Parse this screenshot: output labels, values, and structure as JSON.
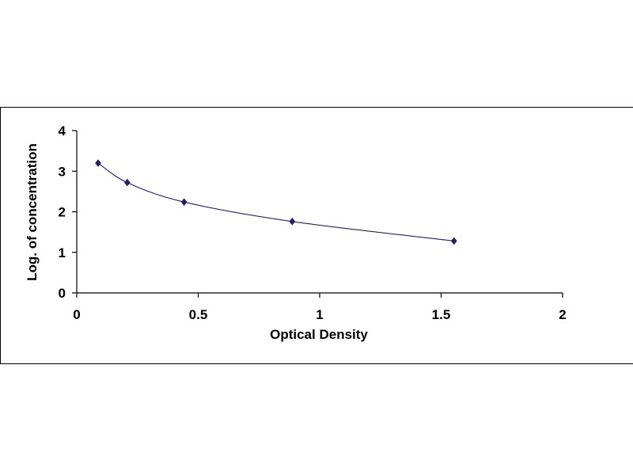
{
  "chart_data": {
    "type": "scatter",
    "title": "",
    "xlabel": "Optical Density",
    "ylabel": "Log. of concentration",
    "xlim": [
      0,
      2
    ],
    "ylim": [
      0,
      4
    ],
    "x_ticks": [
      0,
      0.5,
      1,
      1.5,
      2
    ],
    "x_tick_labels": [
      "0",
      "0.5",
      "1",
      "1.5",
      "2"
    ],
    "y_ticks": [
      0,
      1,
      2,
      3,
      4
    ],
    "y_tick_labels": [
      "0",
      "1",
      "2",
      "3",
      "4"
    ],
    "grid": false,
    "legend": "none",
    "series": [
      {
        "marker": "diamond",
        "line": "smooth",
        "x": [
          0.088,
          0.208,
          0.442,
          0.887,
          1.553
        ],
        "y": [
          3.2,
          2.72,
          2.24,
          1.76,
          1.28
        ]
      }
    ],
    "colors": {
      "marker": "#1f1f6e",
      "line": "#1f1f6e",
      "axis": "#000000"
    }
  }
}
